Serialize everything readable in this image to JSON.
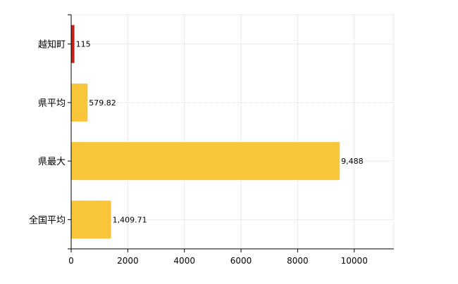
{
  "chart_data": {
    "type": "bar",
    "orientation": "horizontal",
    "categories": [
      "越知町",
      "県平均",
      "県最大",
      "全国平均"
    ],
    "values": [
      115,
      579.82,
      9488,
      1409.71
    ],
    "value_labels": [
      "115",
      "579.82",
      "9,488",
      "1,409.71"
    ],
    "bar_colors": [
      "#C0231B",
      "#F8C53B",
      "#F8C53B",
      "#F8C53B"
    ],
    "xlim": [
      0,
      11400
    ],
    "x_ticks": [
      0,
      2000,
      4000,
      6000,
      8000,
      10000
    ],
    "x_tick_labels": [
      "0",
      "2000",
      "4000",
      "6000",
      "8000",
      "10000"
    ],
    "title": "",
    "xlabel": "",
    "ylabel": "",
    "grid": true,
    "legend": "none"
  }
}
